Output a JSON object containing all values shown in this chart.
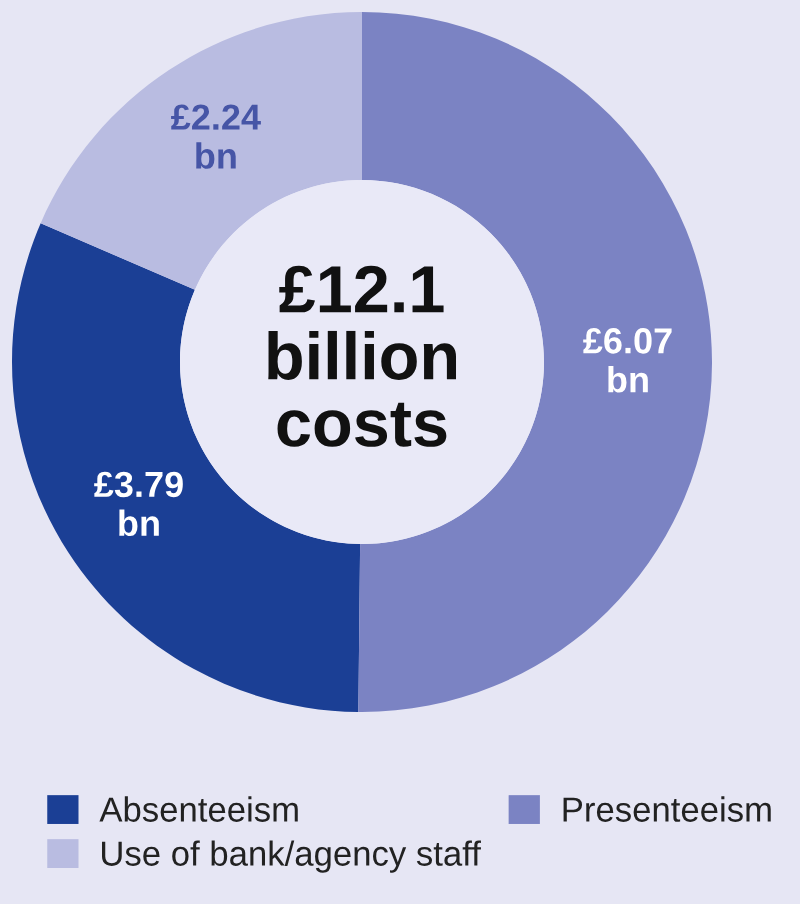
{
  "chart_data": {
    "type": "donut",
    "categories": [
      "Absenteeism",
      "Presenteeism",
      "Use of bank/agency staff"
    ],
    "values": [
      3.79,
      6.07,
      2.24
    ],
    "colors": [
      "#1b3f95",
      "#7b83c3",
      "#b9bce1"
    ],
    "value_labels": [
      "£3.79 bn",
      "£6.07 bn",
      "£2.24 bn"
    ],
    "annotations": [
      "£12.1\nbillion\ncosts"
    ],
    "legend": "bottom"
  }
}
